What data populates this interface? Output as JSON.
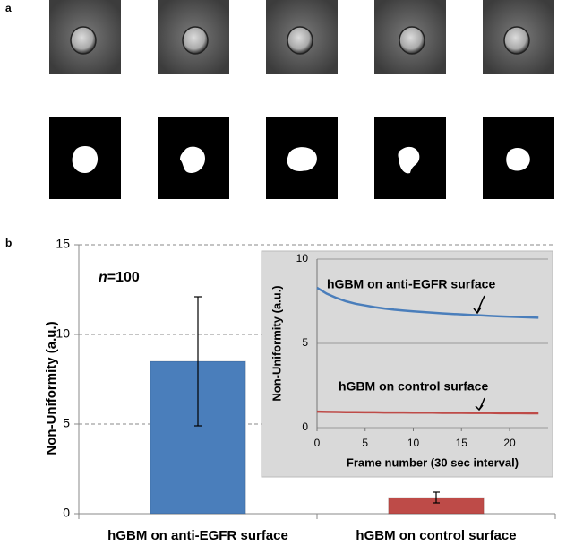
{
  "panel_labels": [
    "a",
    "b"
  ],
  "chart_data": [
    {
      "type": "bar",
      "y_label": "Non-Uniformity (a.u.)",
      "annotations": [
        "n",
        "=100"
      ],
      "categories": [
        "hGBM on anti-EGFR surface",
        "hGBM on control surface"
      ],
      "values": [
        8.5,
        0.9
      ],
      "errors": [
        3.6,
        0.3
      ],
      "colors": [
        "#4a7ebb",
        "#be4b48"
      ],
      "ylim": [
        0,
        15
      ],
      "yticks": [
        0,
        5,
        10,
        15
      ],
      "grid": true
    },
    {
      "type": "line",
      "x_label": "Frame number (30 sec interval)",
      "y_label": "Non-Uniformity (a.u.)",
      "annotations": [
        "hGBM on anti-EGFR surface",
        "hGBM on control surface"
      ],
      "x": [
        0,
        1,
        2,
        3,
        4,
        5,
        6,
        7,
        8,
        9,
        10,
        11,
        12,
        13,
        14,
        15,
        16,
        17,
        18,
        19,
        20,
        21,
        22,
        23
      ],
      "series": [
        {
          "color": "#4a7ebb",
          "values": [
            8.3,
            7.95,
            7.7,
            7.5,
            7.35,
            7.25,
            7.15,
            7.07,
            7.0,
            6.95,
            6.9,
            6.86,
            6.82,
            6.78,
            6.75,
            6.72,
            6.69,
            6.66,
            6.63,
            6.6,
            6.58,
            6.56,
            6.54,
            6.52
          ]
        },
        {
          "color": "#be4b48",
          "values": [
            0.95,
            0.94,
            0.93,
            0.92,
            0.92,
            0.91,
            0.91,
            0.9,
            0.9,
            0.9,
            0.89,
            0.89,
            0.89,
            0.88,
            0.88,
            0.88,
            0.87,
            0.87,
            0.87,
            0.86,
            0.86,
            0.86,
            0.85,
            0.85
          ]
        }
      ],
      "xlim": [
        0,
        24
      ],
      "xticks": [
        0,
        5,
        10,
        15,
        20
      ],
      "ylim": [
        0,
        10
      ],
      "yticks": [
        0,
        5,
        10
      ],
      "grid": true
    }
  ]
}
